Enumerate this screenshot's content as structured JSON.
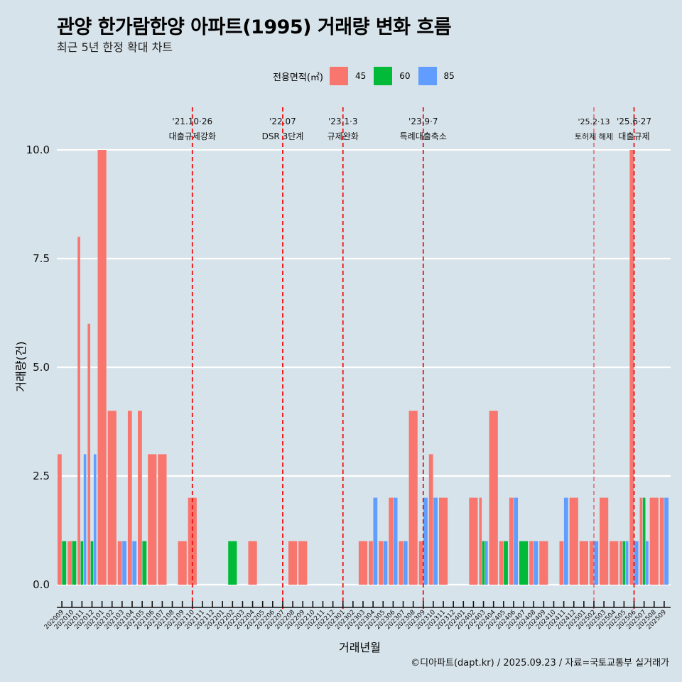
{
  "header": {
    "title": "관양 한가람한양 아파트(1995) 거래량 변화 흐름",
    "subtitle": "최근 5년 한정 확대 차트"
  },
  "legend": {
    "title": "전용면적(㎡)",
    "items": [
      {
        "label": "45",
        "color": "#f8766d"
      },
      {
        "label": "60",
        "color": "#00ba38"
      },
      {
        "label": "85",
        "color": "#619cff"
      }
    ]
  },
  "caption": "©디아파트(dapt.kr) / 2025.09.23 / 자료=국토교통부 실거래가",
  "chart_data": {
    "type": "bar",
    "title": "관양 한가람한양 아파트(1995) 거래량 변화 흐름",
    "subtitle": "최근 5년 한정 확대 차트",
    "xlabel": "거래년월",
    "ylabel": "거래량(건)",
    "ylim": [
      0,
      10
    ],
    "yticks": [
      "0.0",
      "2.5",
      "5.0",
      "7.5",
      "10.0"
    ],
    "ytick_values": [
      0,
      2.5,
      5,
      7.5,
      10
    ],
    "grid": true,
    "legend_position": "top",
    "categories": [
      "202009",
      "202010",
      "202011",
      "202012",
      "202101",
      "202102",
      "202103",
      "202104",
      "202105",
      "202106",
      "202107",
      "202108",
      "202109",
      "202110",
      "202111",
      "202112",
      "202201",
      "202202",
      "202203",
      "202204",
      "202205",
      "202206",
      "202207",
      "202208",
      "202209",
      "202210",
      "202211",
      "202212",
      "202301",
      "202302",
      "202303",
      "202304",
      "202305",
      "202306",
      "202307",
      "202308",
      "202309",
      "202310",
      "202311",
      "202312",
      "202401",
      "202402",
      "202403",
      "202404",
      "202405",
      "202406",
      "202407",
      "202408",
      "202409",
      "202410",
      "202411",
      "202412",
      "202501",
      "202502",
      "202503",
      "202504",
      "202505",
      "202506",
      "202507",
      "202508",
      "202509"
    ],
    "series": [
      {
        "name": "45",
        "color": "#f8766d",
        "values": [
          3,
          1,
          8,
          6,
          10,
          4,
          1,
          4,
          4,
          3,
          3,
          0,
          1,
          2,
          0,
          0,
          0,
          0,
          0,
          1,
          0,
          0,
          0,
          1,
          1,
          0,
          0,
          0,
          0,
          0,
          1,
          1,
          1,
          2,
          1,
          4,
          1,
          3,
          2,
          0,
          0,
          2,
          2,
          4,
          1,
          2,
          0,
          1,
          1,
          0,
          1,
          2,
          1,
          1,
          2,
          1,
          1,
          10,
          2,
          2,
          2
        ]
      },
      {
        "name": "60",
        "color": "#00ba38",
        "values": [
          1,
          1,
          1,
          1,
          0,
          0,
          0,
          0,
          1,
          0,
          0,
          0,
          0,
          0,
          0,
          0,
          0,
          1,
          0,
          0,
          0,
          0,
          0,
          0,
          0,
          0,
          0,
          0,
          0,
          0,
          0,
          0,
          0,
          0,
          0,
          0,
          0,
          0,
          0,
          0,
          0,
          0,
          1,
          0,
          1,
          0,
          1,
          0,
          0,
          0,
          0,
          0,
          0,
          0,
          0,
          0,
          1,
          0,
          2,
          0,
          0
        ]
      },
      {
        "name": "85",
        "color": "#619cff",
        "values": [
          0,
          0,
          3,
          3,
          0,
          0,
          1,
          1,
          0,
          0,
          0,
          0,
          0,
          0,
          0,
          0,
          0,
          0,
          0,
          0,
          0,
          0,
          0,
          0,
          0,
          0,
          0,
          0,
          0,
          0,
          0,
          2,
          1,
          2,
          1,
          0,
          2,
          2,
          0,
          0,
          0,
          0,
          1,
          0,
          0,
          2,
          0,
          1,
          0,
          0,
          2,
          0,
          0,
          1,
          0,
          0,
          1,
          1,
          1,
          0,
          2
        ]
      }
    ],
    "annotations": [
      {
        "month": "202110",
        "date": "'21.10·26",
        "label": "대출규제강화",
        "style": "major"
      },
      {
        "month": "202207",
        "date": "'22.07",
        "label": "DSR 3단계",
        "style": "major"
      },
      {
        "month": "202301",
        "date": "'23.1·3",
        "label": "규제완화",
        "style": "major"
      },
      {
        "month": "202309",
        "date": "'23.9·7",
        "label": "특례대출축소",
        "style": "major"
      },
      {
        "month": "202502",
        "date": "'25.2·13",
        "label": "토허제 해제",
        "style": "minor"
      },
      {
        "month": "202506",
        "date": "'25.6·27",
        "label": "대출규제",
        "style": "major"
      }
    ]
  }
}
